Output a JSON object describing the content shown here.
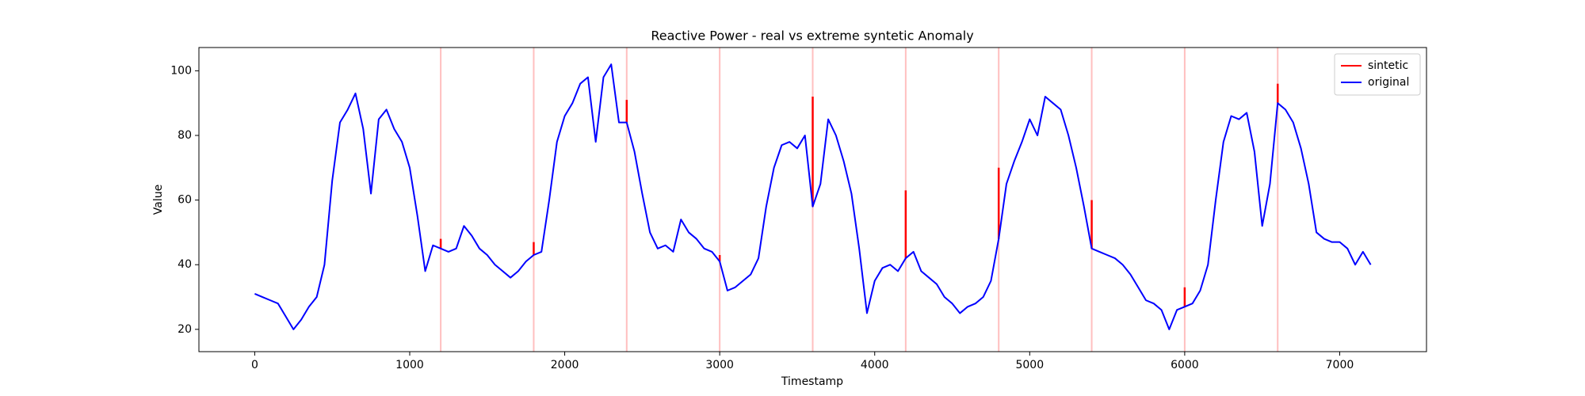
{
  "chart_data": {
    "type": "line",
    "title": "Reactive Power - real vs extreme syntetic Anomaly",
    "x_label": "Timestamp",
    "y_label": "Value",
    "xlim": [
      -360,
      7560
    ],
    "ylim": [
      13.1,
      107.2
    ],
    "xticks": [
      0,
      1000,
      2000,
      3000,
      4000,
      5000,
      6000,
      7000
    ],
    "yticks": [
      20,
      40,
      60,
      80,
      100
    ],
    "legend": "upper right",
    "series": [
      {
        "name": "sintetic",
        "color": "#ff0000",
        "x": [
          1200,
          1800,
          2400,
          3000,
          3600,
          4200,
          4800,
          5400,
          6000,
          6600
        ],
        "values": [
          48,
          47,
          91,
          43,
          92,
          63,
          70,
          60,
          33,
          96
        ]
      },
      {
        "name": "original",
        "color": "#0000ff",
        "x": [
          0,
          50,
          100,
          150,
          200,
          250,
          300,
          350,
          400,
          450,
          500,
          550,
          600,
          650,
          700,
          750,
          800,
          850,
          900,
          950,
          1000,
          1050,
          1100,
          1150,
          1200,
          1250,
          1300,
          1350,
          1400,
          1450,
          1500,
          1550,
          1600,
          1650,
          1700,
          1750,
          1800,
          1850,
          1900,
          1950,
          2000,
          2050,
          2100,
          2150,
          2200,
          2250,
          2300,
          2350,
          2400,
          2450,
          2500,
          2550,
          2600,
          2650,
          2700,
          2750,
          2800,
          2850,
          2900,
          2950,
          3000,
          3050,
          3100,
          3150,
          3200,
          3250,
          3300,
          3350,
          3400,
          3450,
          3500,
          3550,
          3600,
          3650,
          3700,
          3750,
          3800,
          3850,
          3900,
          3950,
          4000,
          4050,
          4100,
          4150,
          4200,
          4250,
          4300,
          4350,
          4400,
          4450,
          4500,
          4550,
          4600,
          4650,
          4700,
          4750,
          4800,
          4850,
          4900,
          4950,
          5000,
          5050,
          5100,
          5150,
          5200,
          5250,
          5300,
          5350,
          5400,
          5450,
          5500,
          5550,
          5600,
          5650,
          5700,
          5750,
          5800,
          5850,
          5900,
          5950,
          6000,
          6050,
          6100,
          6150,
          6200,
          6250,
          6300,
          6350,
          6400,
          6450,
          6500,
          6550,
          6600,
          6650,
          6700,
          6750,
          6800,
          6850,
          6900,
          6950,
          7000,
          7050,
          7100,
          7150,
          7200
        ],
        "values": [
          31,
          30,
          29,
          28,
          24,
          20,
          23,
          27,
          30,
          40,
          66,
          84,
          88,
          93,
          82,
          62,
          85,
          88,
          82,
          78,
          70,
          55,
          38,
          46,
          45,
          44,
          45,
          52,
          49,
          45,
          43,
          40,
          38,
          36,
          38,
          41,
          43,
          44,
          60,
          78,
          86,
          90,
          96,
          98,
          78,
          98,
          102,
          84,
          84,
          75,
          62,
          50,
          45,
          46,
          44,
          54,
          50,
          48,
          45,
          44,
          41,
          32,
          33,
          35,
          37,
          42,
          58,
          70,
          77,
          78,
          76,
          80,
          58,
          65,
          85,
          80,
          72,
          62,
          45,
          25,
          35,
          39,
          40,
          38,
          42,
          44,
          38,
          36,
          34,
          30,
          28,
          25,
          27,
          28,
          30,
          35,
          48,
          65,
          72,
          78,
          85,
          80,
          92,
          90,
          88,
          80,
          70,
          58,
          45,
          44,
          43,
          42,
          40,
          37,
          33,
          29,
          28,
          26,
          20,
          26,
          27,
          28,
          32,
          40,
          60,
          78,
          86,
          85,
          87,
          75,
          52,
          65,
          90,
          88,
          84,
          76,
          65,
          50,
          48,
          47,
          47,
          45,
          40,
          44,
          40
        ]
      }
    ]
  }
}
